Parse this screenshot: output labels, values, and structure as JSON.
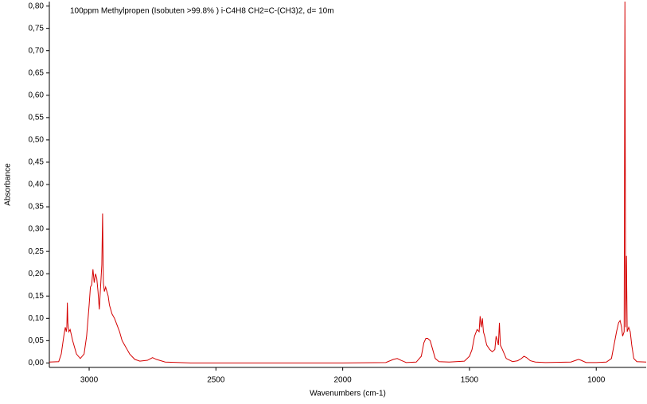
{
  "chart_data": {
    "type": "line",
    "title": "100ppm Methylpropen (Isobuten >99.8% ) i-C4H8 CH2=C-(CH3)2, d= 10m",
    "x_label": "Wavenumbers (cm-1)",
    "y_label": "Absorbance",
    "color": "#d40000",
    "xlim": [
      3157,
      803
    ],
    "ylim": [
      -0.01,
      0.81
    ],
    "xticks": [
      3000,
      2500,
      2000,
      1500,
      1000
    ],
    "yticks": [
      {
        "value": 0.0,
        "label": "0,00"
      },
      {
        "value": 0.05,
        "label": "0,05"
      },
      {
        "value": 0.1,
        "label": "0,10"
      },
      {
        "value": 0.15,
        "label": "0,15"
      },
      {
        "value": 0.2,
        "label": "0,20"
      },
      {
        "value": 0.25,
        "label": "0,25"
      },
      {
        "value": 0.3,
        "label": "0,30"
      },
      {
        "value": 0.35,
        "label": "0,35"
      },
      {
        "value": 0.4,
        "label": "0,40"
      },
      {
        "value": 0.45,
        "label": "0,45"
      },
      {
        "value": 0.5,
        "label": "0,50"
      },
      {
        "value": 0.55,
        "label": "0,55"
      },
      {
        "value": 0.6,
        "label": "0,60"
      },
      {
        "value": 0.65,
        "label": "0,65"
      },
      {
        "value": 0.7,
        "label": "0,70"
      },
      {
        "value": 0.75,
        "label": "0,75"
      },
      {
        "value": 0.8,
        "label": "0,80"
      }
    ],
    "x": [
      3157,
      3120,
      3110,
      3100,
      3094,
      3090,
      3088,
      3086,
      3084,
      3080,
      3075,
      3065,
      3050,
      3035,
      3020,
      3010,
      3000,
      2995,
      2990,
      2985,
      2980,
      2975,
      2970,
      2965,
      2960,
      2955,
      2950,
      2947,
      2944,
      2940,
      2935,
      2930,
      2925,
      2920,
      2910,
      2900,
      2890,
      2880,
      2870,
      2860,
      2850,
      2840,
      2820,
      2800,
      2770,
      2750,
      2735,
      2700,
      2600,
      2400,
      2200,
      2000,
      1830,
      1800,
      1785,
      1770,
      1750,
      1710,
      1690,
      1680,
      1672,
      1665,
      1655,
      1645,
      1635,
      1620,
      1580,
      1520,
      1500,
      1490,
      1480,
      1470,
      1462,
      1458,
      1454,
      1449,
      1445,
      1440,
      1432,
      1420,
      1410,
      1400,
      1395,
      1390,
      1386,
      1382,
      1378,
      1370,
      1355,
      1330,
      1310,
      1295,
      1285,
      1275,
      1260,
      1240,
      1200,
      1100,
      1080,
      1070,
      1060,
      1040,
      1000,
      960,
      940,
      930,
      920,
      912,
      906,
      900,
      896,
      890,
      887,
      884,
      881,
      878,
      872,
      866,
      860,
      852,
      840,
      803
    ],
    "values": [
      0.002,
      0.003,
      0.02,
      0.06,
      0.08,
      0.07,
      0.08,
      0.135,
      0.09,
      0.07,
      0.075,
      0.05,
      0.02,
      0.01,
      0.02,
      0.06,
      0.13,
      0.17,
      0.175,
      0.21,
      0.18,
      0.2,
      0.19,
      0.16,
      0.12,
      0.17,
      0.22,
      0.335,
      0.18,
      0.16,
      0.17,
      0.16,
      0.15,
      0.13,
      0.11,
      0.1,
      0.085,
      0.07,
      0.05,
      0.04,
      0.03,
      0.02,
      0.008,
      0.004,
      0.006,
      0.012,
      0.008,
      0.002,
      0.0,
      0.0,
      0.0,
      0.0,
      0.001,
      0.008,
      0.01,
      0.006,
      0.001,
      0.002,
      0.015,
      0.045,
      0.055,
      0.055,
      0.05,
      0.03,
      0.01,
      0.003,
      0.002,
      0.004,
      0.015,
      0.03,
      0.06,
      0.075,
      0.07,
      0.105,
      0.08,
      0.1,
      0.07,
      0.06,
      0.04,
      0.03,
      0.025,
      0.03,
      0.06,
      0.05,
      0.04,
      0.09,
      0.04,
      0.03,
      0.01,
      0.003,
      0.005,
      0.01,
      0.015,
      0.012,
      0.005,
      0.002,
      0.001,
      0.002,
      0.006,
      0.008,
      0.006,
      0.001,
      0.001,
      0.002,
      0.01,
      0.04,
      0.07,
      0.09,
      0.095,
      0.08,
      0.06,
      0.07,
      0.81,
      0.08,
      0.24,
      0.07,
      0.08,
      0.07,
      0.04,
      0.01,
      0.003,
      0.002
    ]
  }
}
